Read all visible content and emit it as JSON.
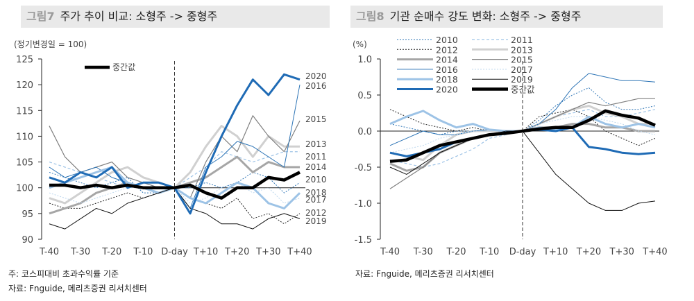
{
  "left_panel": {
    "figure_no": "그림7",
    "title": "주가 추이 비교: 소형주 -> 중형주",
    "note": "주: 코스피대비 초과수익률 기준",
    "source": "자료: Fnguide, 메리츠증권 리서치센터"
  },
  "right_panel": {
    "figure_no": "그림8",
    "title": "기관 순매수 강도 변화: 소형주 -> 중형주",
    "source": "자료: Fnguide, 메리츠증권 리서치센터"
  },
  "styles": {
    "2010": {
      "color": "#2e75b6",
      "width": 1,
      "dash": "2,2"
    },
    "2011": {
      "color": "#9dc3e6",
      "width": 1.2,
      "dash": "4,3"
    },
    "2012": {
      "color": "#222222",
      "width": 1,
      "dash": "2,2"
    },
    "2013": {
      "color": "#d0d0d0",
      "width": 3,
      "dash": ""
    },
    "2014": {
      "color": "#a6a6a6",
      "width": 3,
      "dash": ""
    },
    "2015": {
      "color": "#7f7f7f",
      "width": 1.2,
      "dash": ""
    },
    "2016": {
      "color": "#2e75b6",
      "width": 1,
      "dash": ""
    },
    "2017": {
      "color": "#bdd7ee",
      "width": 1,
      "dash": "2,2"
    },
    "2018": {
      "color": "#9dc3e6",
      "width": 3,
      "dash": ""
    },
    "2019": {
      "color": "#111111",
      "width": 1,
      "dash": ""
    },
    "2020": {
      "color": "#1f6bb5",
      "width": 3,
      "dash": ""
    },
    "중간값": {
      "color": "#000000",
      "width": 4.5,
      "dash": ""
    }
  },
  "chart_data": [
    {
      "type": "line",
      "ylabel": "(정기변경일 = 100)",
      "ylim": [
        90,
        125
      ],
      "yticks": [
        90,
        95,
        100,
        105,
        110,
        115,
        120,
        125
      ],
      "x": [
        "T-40",
        "T-35",
        "T-30",
        "T-25",
        "T-20",
        "T-15",
        "T-10",
        "T-5",
        "D-day",
        "T+5",
        "T+10",
        "T+15",
        "T+20",
        "T+25",
        "T+30",
        "T+35",
        "T+40"
      ],
      "xticks": [
        "T-40",
        "T-30",
        "T-20",
        "T-10",
        "D-day",
        "T+10",
        "T+20",
        "T+30",
        "T+40"
      ],
      "legend": [
        "중간값"
      ],
      "legend_position": "top-left",
      "series": [
        {
          "name": "2010",
          "values": [
            103,
            102,
            101,
            100,
            101,
            102,
            99,
            99,
            100,
            100,
            101,
            100,
            101,
            103,
            102,
            99,
            101
          ]
        },
        {
          "name": "2011",
          "values": [
            105,
            104,
            103,
            102,
            101,
            100,
            101,
            100,
            100,
            102,
            104,
            107,
            106,
            105,
            106,
            107,
            107
          ]
        },
        {
          "name": "2012",
          "values": [
            97,
            96,
            96,
            97,
            98,
            99,
            98,
            99,
            100,
            98,
            97,
            96,
            98,
            94,
            95,
            93,
            95
          ]
        },
        {
          "name": "2013",
          "values": [
            98,
            97,
            99,
            101,
            103,
            104,
            102,
            101,
            100,
            103,
            108,
            112,
            110,
            106,
            110,
            108,
            108
          ]
        },
        {
          "name": "2014",
          "values": [
            95,
            96,
            97,
            99,
            100,
            101,
            100,
            99,
            100,
            101,
            102,
            104,
            106,
            103,
            105,
            104,
            104
          ]
        },
        {
          "name": "2015",
          "values": [
            112,
            106,
            103,
            104,
            105,
            102,
            101,
            100,
            100,
            98,
            105,
            110,
            107,
            114,
            110,
            107,
            113
          ]
        },
        {
          "name": "2016",
          "values": [
            104,
            102,
            103,
            104,
            102,
            101,
            100,
            99,
            100,
            96,
            104,
            106,
            109,
            108,
            106,
            104,
            120
          ]
        },
        {
          "name": "2017",
          "values": [
            99,
            98,
            97,
            98,
            99,
            100,
            100,
            100,
            100,
            97,
            98,
            100,
            101,
            99,
            100,
            97,
            98
          ]
        },
        {
          "name": "2018",
          "values": [
            100,
            101,
            102,
            103,
            104,
            101,
            100,
            99,
            100,
            98,
            97,
            99,
            101,
            100,
            97,
            96,
            99
          ]
        },
        {
          "name": "2019",
          "values": [
            93,
            92,
            94,
            96,
            95,
            97,
            98,
            99,
            100,
            96,
            95,
            93,
            93,
            92,
            94,
            95,
            94
          ]
        },
        {
          "name": "2020",
          "values": [
            102,
            101,
            103,
            102,
            104,
            100,
            101,
            101,
            100,
            95,
            103,
            110,
            116,
            121,
            118,
            122,
            121
          ]
        },
        {
          "name": "중간값",
          "values": [
            100.5,
            100.5,
            100,
            100.5,
            100,
            100.5,
            100,
            100,
            100,
            100.5,
            99,
            98,
            100,
            100,
            102,
            101.5,
            103
          ]
        }
      ],
      "end_labels": [
        "2020",
        "2016",
        "2015",
        "2013",
        "2011",
        "2014",
        "2010",
        "2018",
        "2017",
        "2012",
        "2019"
      ]
    },
    {
      "type": "line",
      "ylabel": "(%)",
      "ylim": [
        -1.5,
        1.0
      ],
      "yticks": [
        -1.5,
        -1.0,
        -0.5,
        0.0,
        0.5,
        1.0
      ],
      "x": [
        "T-40",
        "T-35",
        "T-30",
        "T-25",
        "T-20",
        "T-15",
        "T-10",
        "T-5",
        "D-day",
        "T+5",
        "T+10",
        "T+15",
        "T+20",
        "T+25",
        "T+30",
        "T+35",
        "T+40"
      ],
      "xticks": [
        "T-40",
        "T-30",
        "T-20",
        "T-10",
        "D-day",
        "T+10",
        "T+20",
        "T+30",
        "T+40"
      ],
      "legend": [
        "2010",
        "2011",
        "2012",
        "2013",
        "2014",
        "2015",
        "2016",
        "2017",
        "2018",
        "2019",
        "2020",
        "중간값"
      ],
      "legend_position": "top-left",
      "series": [
        {
          "name": "2010",
          "values": [
            0.1,
            0.05,
            0,
            -0.05,
            0,
            0,
            0.02,
            0,
            0,
            0.15,
            0.35,
            0.5,
            0.6,
            0.4,
            0.3,
            0.3,
            0.35
          ]
        },
        {
          "name": "2011",
          "values": [
            -0.4,
            -0.45,
            -0.5,
            -0.45,
            -0.35,
            -0.25,
            -0.1,
            -0.05,
            0,
            0.1,
            0.2,
            0.25,
            0.3,
            0.2,
            0.2,
            0.25,
            0.3
          ]
        },
        {
          "name": "2012",
          "values": [
            0.3,
            0.2,
            0.1,
            0.05,
            0,
            0.05,
            0,
            -0.02,
            0,
            0.2,
            0.25,
            0.3,
            0.2,
            0,
            -0.1,
            -0.2,
            -0.1
          ]
        },
        {
          "name": "2013",
          "values": [
            -0.3,
            -0.35,
            -0.4,
            -0.2,
            -0.05,
            0,
            0,
            0,
            0,
            0.1,
            0.2,
            0.3,
            0.35,
            0.25,
            0.2,
            0.1,
            0.1
          ]
        },
        {
          "name": "2014",
          "values": [
            -0.45,
            -0.55,
            -0.5,
            -0.3,
            -0.2,
            -0.1,
            -0.05,
            0,
            0,
            0.05,
            0.05,
            0.1,
            0.1,
            0.05,
            0.05,
            0,
            0
          ]
        },
        {
          "name": "2015",
          "values": [
            -0.8,
            -0.65,
            -0.5,
            -0.3,
            -0.2,
            -0.1,
            -0.05,
            0,
            0,
            0.1,
            0.2,
            0.3,
            0.4,
            0.35,
            0.4,
            0.45,
            0.45
          ]
        },
        {
          "name": "2016",
          "values": [
            -0.2,
            -0.1,
            0,
            -0.05,
            -0.05,
            0,
            0.02,
            0,
            0,
            0.1,
            0.3,
            0.6,
            0.8,
            0.75,
            0.7,
            0.7,
            0.68
          ]
        },
        {
          "name": "2017",
          "values": [
            -0.3,
            -0.25,
            -0.2,
            -0.1,
            -0.05,
            0,
            0,
            0,
            0,
            0.1,
            0.15,
            0.2,
            0.2,
            0.15,
            0.1,
            0,
            -0.05
          ]
        },
        {
          "name": "2018",
          "values": [
            0.1,
            0.2,
            0.28,
            0.15,
            0.05,
            0.1,
            0.02,
            0,
            0,
            0.05,
            0.02,
            0.05,
            0.2,
            0.1,
            0.05,
            0.1,
            0.05
          ]
        },
        {
          "name": "2019",
          "values": [
            -0.5,
            -0.6,
            -0.45,
            -0.3,
            -0.2,
            -0.1,
            -0.05,
            0,
            0,
            -0.3,
            -0.6,
            -0.8,
            -1.0,
            -1.1,
            -1.1,
            -1.0,
            -0.97
          ]
        },
        {
          "name": "2020",
          "values": [
            -0.3,
            -0.35,
            -0.3,
            -0.25,
            -0.15,
            -0.1,
            -0.05,
            -0.02,
            0,
            0.02,
            0,
            0.05,
            -0.22,
            -0.25,
            -0.3,
            -0.32,
            -0.3
          ]
        },
        {
          "name": "중간값",
          "values": [
            -0.42,
            -0.4,
            -0.3,
            -0.2,
            -0.15,
            -0.1,
            -0.05,
            -0.03,
            0,
            0.03,
            0.05,
            0.05,
            0.15,
            0.28,
            0.22,
            0.18,
            0.08
          ]
        }
      ]
    }
  ]
}
